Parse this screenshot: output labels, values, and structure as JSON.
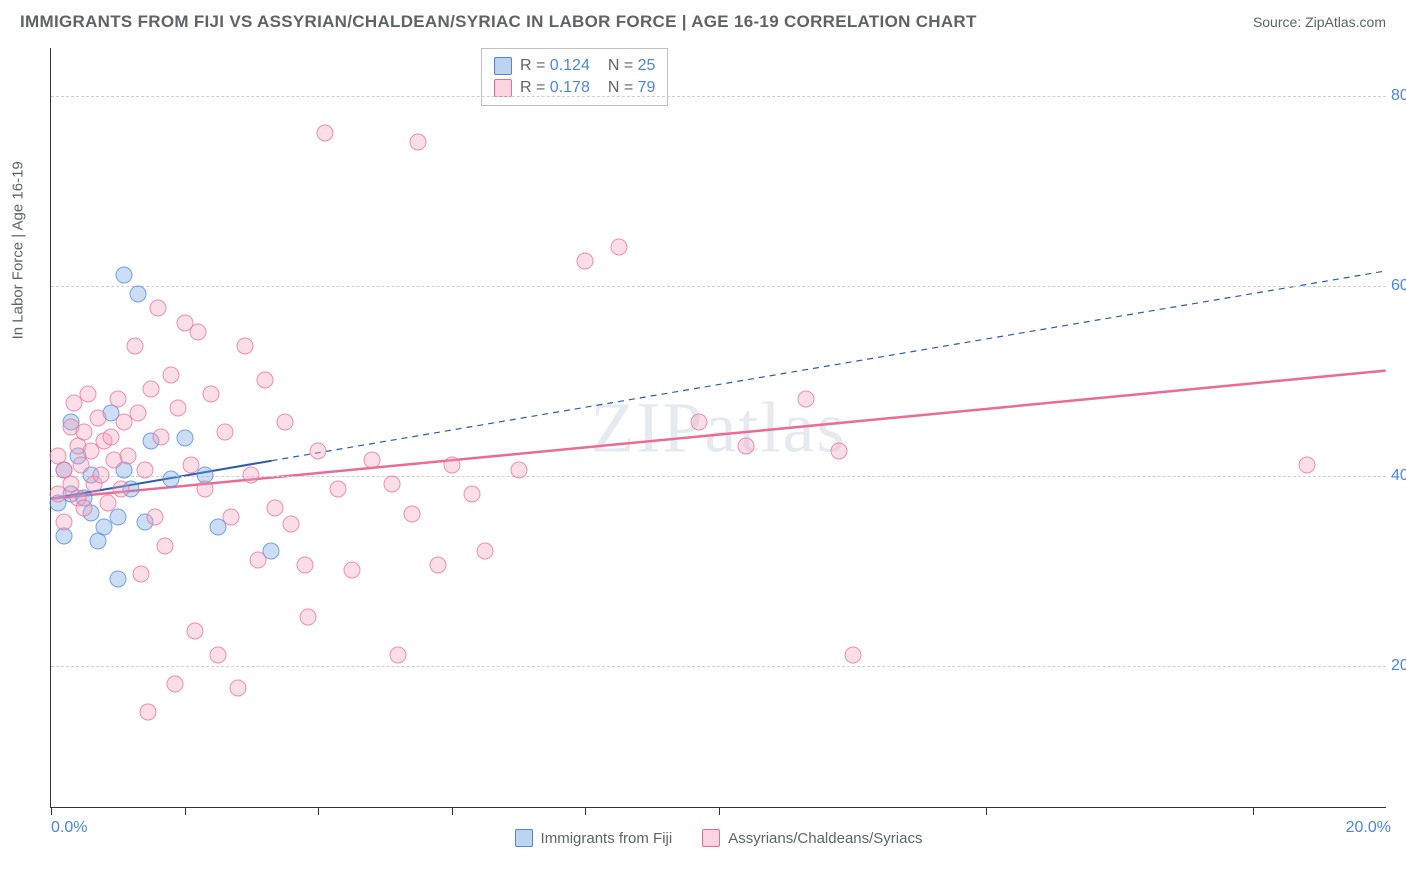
{
  "header": {
    "title": "IMMIGRANTS FROM FIJI VS ASSYRIAN/CHALDEAN/SYRIAC IN LABOR FORCE | AGE 16-19 CORRELATION CHART",
    "source": "Source: ZipAtlas.com"
  },
  "chart": {
    "type": "scatter",
    "ylabel": "In Labor Force | Age 16-19",
    "xlim": [
      0,
      20
    ],
    "ylim": [
      5,
      85
    ],
    "y_gridlines": [
      20,
      40,
      60,
      80
    ],
    "y_tick_labels": [
      "20.0%",
      "40.0%",
      "60.0%",
      "80.0%"
    ],
    "x_ticks": [
      0,
      2,
      4,
      6,
      8,
      10,
      14,
      18
    ],
    "x_left_label": "0.0%",
    "x_right_label": "20.0%",
    "grid_color": "#d0d0d0",
    "background_color": "#ffffff",
    "axis_color": "#333333",
    "watermark": "ZIPatlas",
    "series": [
      {
        "name": "Immigrants from Fiji",
        "color_fill": "rgba(108,160,220,0.35)",
        "color_stroke": "rgba(74,134,232,0.7)",
        "marker_size": 17,
        "r": "0.124",
        "n": "25",
        "trend": {
          "x1": 0,
          "y1": 37.5,
          "x2_solid": 3.3,
          "y2_solid": 41.5,
          "x2_dash": 20,
          "y2_dash": 61.5,
          "stroke": "#2a5db0",
          "width": 2
        },
        "points": [
          [
            0.1,
            37.0
          ],
          [
            0.2,
            33.5
          ],
          [
            0.2,
            40.5
          ],
          [
            0.3,
            45.5
          ],
          [
            0.3,
            38.0
          ],
          [
            0.4,
            42.0
          ],
          [
            0.5,
            37.5
          ],
          [
            0.6,
            36.0
          ],
          [
            0.6,
            40.0
          ],
          [
            0.7,
            33.0
          ],
          [
            0.8,
            34.5
          ],
          [
            0.9,
            46.5
          ],
          [
            1.0,
            35.5
          ],
          [
            1.0,
            29.0
          ],
          [
            1.1,
            61.0
          ],
          [
            1.1,
            40.5
          ],
          [
            1.2,
            38.5
          ],
          [
            1.3,
            59.0
          ],
          [
            1.4,
            35.0
          ],
          [
            1.5,
            43.5
          ],
          [
            1.8,
            39.5
          ],
          [
            2.0,
            43.8
          ],
          [
            2.3,
            40.0
          ],
          [
            2.5,
            34.5
          ],
          [
            3.3,
            32.0
          ]
        ]
      },
      {
        "name": "Assyrians/Chaldeans/Syriacs",
        "color_fill": "rgba(244,160,188,0.35)",
        "color_stroke": "rgba(235,107,148,0.7)",
        "marker_size": 17,
        "r": "0.178",
        "n": "79",
        "trend": {
          "x1": 0,
          "y1": 37.5,
          "x2_solid": 20,
          "y2_solid": 51.0,
          "stroke": "#eb6b94",
          "width": 2.5
        },
        "points": [
          [
            0.1,
            38.0
          ],
          [
            0.1,
            42.0
          ],
          [
            0.2,
            40.5
          ],
          [
            0.2,
            35.0
          ],
          [
            0.3,
            45.0
          ],
          [
            0.3,
            39.0
          ],
          [
            0.35,
            47.5
          ],
          [
            0.4,
            43.0
          ],
          [
            0.4,
            37.5
          ],
          [
            0.45,
            41.0
          ],
          [
            0.5,
            44.5
          ],
          [
            0.5,
            36.5
          ],
          [
            0.55,
            48.5
          ],
          [
            0.6,
            42.5
          ],
          [
            0.65,
            39.0
          ],
          [
            0.7,
            46.0
          ],
          [
            0.75,
            40.0
          ],
          [
            0.8,
            43.5
          ],
          [
            0.85,
            37.0
          ],
          [
            0.9,
            44.0
          ],
          [
            0.95,
            41.5
          ],
          [
            1.0,
            48.0
          ],
          [
            1.05,
            38.5
          ],
          [
            1.1,
            45.5
          ],
          [
            1.15,
            42.0
          ],
          [
            1.25,
            53.5
          ],
          [
            1.3,
            46.5
          ],
          [
            1.35,
            29.5
          ],
          [
            1.4,
            40.5
          ],
          [
            1.45,
            15.0
          ],
          [
            1.5,
            49.0
          ],
          [
            1.55,
            35.5
          ],
          [
            1.6,
            57.5
          ],
          [
            1.65,
            44.0
          ],
          [
            1.7,
            32.5
          ],
          [
            1.8,
            50.5
          ],
          [
            1.85,
            18.0
          ],
          [
            1.9,
            47.0
          ],
          [
            2.0,
            56.0
          ],
          [
            2.1,
            41.0
          ],
          [
            2.15,
            23.5
          ],
          [
            2.2,
            55.0
          ],
          [
            2.3,
            38.5
          ],
          [
            2.4,
            48.5
          ],
          [
            2.5,
            21.0
          ],
          [
            2.6,
            44.5
          ],
          [
            2.7,
            35.5
          ],
          [
            2.8,
            17.5
          ],
          [
            2.9,
            53.5
          ],
          [
            3.0,
            40.0
          ],
          [
            3.1,
            31.0
          ],
          [
            3.2,
            50.0
          ],
          [
            3.35,
            36.5
          ],
          [
            3.5,
            45.5
          ],
          [
            3.6,
            34.8
          ],
          [
            3.8,
            30.5
          ],
          [
            3.85,
            25.0
          ],
          [
            4.0,
            42.5
          ],
          [
            4.1,
            76.0
          ],
          [
            4.3,
            38.5
          ],
          [
            4.5,
            30.0
          ],
          [
            4.8,
            41.5
          ],
          [
            5.1,
            39.0
          ],
          [
            5.2,
            21.0
          ],
          [
            5.4,
            35.8
          ],
          [
            5.5,
            75.0
          ],
          [
            5.8,
            30.5
          ],
          [
            6.0,
            41.0
          ],
          [
            6.3,
            38.0
          ],
          [
            6.5,
            32.0
          ],
          [
            7.0,
            40.5
          ],
          [
            8.0,
            62.5
          ],
          [
            8.5,
            64.0
          ],
          [
            9.7,
            45.5
          ],
          [
            10.4,
            43.0
          ],
          [
            11.3,
            48.0
          ],
          [
            11.8,
            42.5
          ],
          [
            12.0,
            21.0
          ],
          [
            18.8,
            41.0
          ]
        ]
      }
    ],
    "stats_box": {
      "rows": [
        {
          "swatch": "blue",
          "r": "0.124",
          "n": "25"
        },
        {
          "swatch": "pink",
          "r": "0.178",
          "n": "79"
        }
      ]
    },
    "legend": [
      {
        "swatch": "blue",
        "label": "Immigrants from Fiji"
      },
      {
        "swatch": "pink",
        "label": "Assyrians/Chaldeans/Syriacs"
      }
    ]
  }
}
